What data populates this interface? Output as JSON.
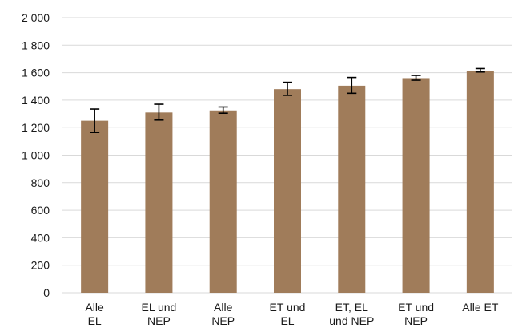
{
  "chart_data": {
    "type": "bar",
    "categories": [
      [
        "Alle",
        "EL"
      ],
      [
        "EL und",
        "NEP"
      ],
      [
        "Alle",
        "NEP"
      ],
      [
        "ET und",
        "EL"
      ],
      [
        "ET, EL",
        "und NEP"
      ],
      [
        "ET und",
        "NEP"
      ],
      [
        "Alle ET"
      ]
    ],
    "values": [
      1250,
      1310,
      1325,
      1480,
      1505,
      1560,
      1615
    ],
    "error_low": [
      1165,
      1255,
      1305,
      1435,
      1450,
      1545,
      1605
    ],
    "error_high": [
      1335,
      1370,
      1350,
      1530,
      1565,
      1580,
      1630
    ],
    "ylim": [
      0,
      2000
    ],
    "yticks": [
      0,
      200,
      400,
      600,
      800,
      1000,
      1200,
      1400,
      1600,
      1800,
      2000
    ],
    "ytick_labels": [
      "0",
      "200",
      "400",
      "600",
      "800",
      "1 000",
      "1 200",
      "1 400",
      "1 600",
      "1 800",
      "2 000"
    ],
    "bar_color": "#a07c5a",
    "grid": true,
    "title": "",
    "xlabel": "",
    "ylabel": ""
  }
}
